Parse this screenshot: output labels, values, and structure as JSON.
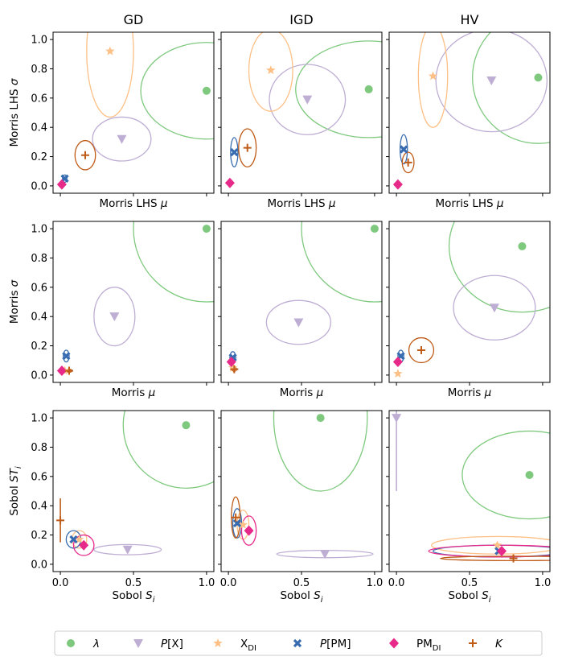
{
  "figure": {
    "column_titles": [
      "GD",
      "IGD",
      "HV"
    ],
    "row_xlabels": [
      {
        "prefix": "Morris LHS",
        "sym": "μ",
        "sub": ""
      },
      {
        "prefix": "Morris",
        "sym": "μ",
        "sub": ""
      },
      {
        "prefix": "Sobol",
        "sym": "S",
        "sub": "i"
      }
    ],
    "row_ylabels": [
      {
        "prefix": "Morris LHS",
        "sym": "σ",
        "sub": ""
      },
      {
        "prefix": "Morris",
        "sym": "σ",
        "sub": ""
      },
      {
        "prefix": "Sobol",
        "sym": "ST",
        "sub": "i"
      }
    ]
  },
  "colors": {
    "lambda": "#7fc97f",
    "PX": "#beaed4",
    "XDI": "#fdc086",
    "PPM": "#386cb0",
    "PMDI": "#e7298a",
    "K": "#bf5b17"
  },
  "legend": [
    {
      "key": "lambda",
      "marker": "circle",
      "main": "λ",
      "italic": true
    },
    {
      "key": "PX",
      "marker": "triangle",
      "main": "P[X]",
      "italicPrefix": "P",
      "rest": "[X]"
    },
    {
      "key": "XDI",
      "marker": "star",
      "main": "X",
      "sub": "DI"
    },
    {
      "key": "PPM",
      "marker": "x",
      "main": "P[PM]",
      "italicPrefix": "P",
      "rest": "[PM]"
    },
    {
      "key": "PMDI",
      "marker": "diamond",
      "main": "PM",
      "sub": "DI"
    },
    {
      "key": "K",
      "marker": "plus",
      "main": "K",
      "italic": true
    }
  ],
  "chart_data": [
    {
      "type": "scatter",
      "row": 0,
      "col": 0,
      "title": "GD",
      "xlabel": "Morris LHS μ",
      "ylabel": "Morris LHS σ",
      "xlim": [
        -0.05,
        1.05
      ],
      "ylim": [
        -0.05,
        1.05
      ],
      "yticks": [
        0.0,
        0.2,
        0.4,
        0.6,
        0.8,
        1.0
      ],
      "points": [
        {
          "s": "lambda",
          "x": 1.0,
          "y": 0.65,
          "ex": 0.45,
          "ey": 0.33
        },
        {
          "s": "PX",
          "x": 0.42,
          "y": 0.32,
          "ex": 0.2,
          "ey": 0.15
        },
        {
          "s": "XDI",
          "x": 0.34,
          "y": 0.92,
          "ex": 0.16,
          "ey": 0.45
        },
        {
          "s": "PPM",
          "x": 0.03,
          "y": 0.05,
          "ex": 0.015,
          "ey": 0.025
        },
        {
          "s": "PMDI",
          "x": 0.01,
          "y": 0.01,
          "ex": 0,
          "ey": 0
        },
        {
          "s": "K",
          "x": 0.17,
          "y": 0.21,
          "ex": 0.07,
          "ey": 0.1
        }
      ]
    },
    {
      "type": "scatter",
      "row": 0,
      "col": 1,
      "title": "IGD",
      "xlabel": "Morris LHS μ",
      "ylabel": "",
      "xlim": [
        -0.05,
        1.05
      ],
      "ylim": [
        -0.05,
        1.05
      ],
      "points": [
        {
          "s": "lambda",
          "x": 0.96,
          "y": 0.66,
          "ex": 0.5,
          "ey": 0.33
        },
        {
          "s": "PX",
          "x": 0.54,
          "y": 0.59,
          "ex": 0.26,
          "ey": 0.24
        },
        {
          "s": "XDI",
          "x": 0.29,
          "y": 0.79,
          "ex": 0.15,
          "ey": 0.28
        },
        {
          "s": "PPM",
          "x": 0.04,
          "y": 0.23,
          "ex": 0.025,
          "ey": 0.1
        },
        {
          "s": "PMDI",
          "x": 0.01,
          "y": 0.02,
          "ex": 0,
          "ey": 0
        },
        {
          "s": "K",
          "x": 0.13,
          "y": 0.26,
          "ex": 0.06,
          "ey": 0.13
        }
      ]
    },
    {
      "type": "scatter",
      "row": 0,
      "col": 2,
      "title": "HV",
      "xlabel": "Morris LHS μ",
      "ylabel": "",
      "xlim": [
        -0.05,
        1.05
      ],
      "ylim": [
        -0.05,
        1.05
      ],
      "points": [
        {
          "s": "lambda",
          "x": 0.97,
          "y": 0.74,
          "ex": 0.45,
          "ey": 0.45
        },
        {
          "s": "PX",
          "x": 0.65,
          "y": 0.72,
          "ex": 0.38,
          "ey": 0.35
        },
        {
          "s": "XDI",
          "x": 0.25,
          "y": 0.75,
          "ex": 0.1,
          "ey": 0.35
        },
        {
          "s": "PPM",
          "x": 0.05,
          "y": 0.25,
          "ex": 0.025,
          "ey": 0.1
        },
        {
          "s": "PMDI",
          "x": 0.01,
          "y": 0.01,
          "ex": 0,
          "ey": 0
        },
        {
          "s": "K",
          "x": 0.08,
          "y": 0.16,
          "ex": 0.04,
          "ey": 0.07
        }
      ]
    },
    {
      "type": "scatter",
      "row": 1,
      "col": 0,
      "title": "",
      "xlabel": "Morris μ",
      "ylabel": "Morris σ",
      "xlim": [
        -0.05,
        1.05
      ],
      "ylim": [
        -0.05,
        1.05
      ],
      "yticks": [
        0.0,
        0.2,
        0.4,
        0.6,
        0.8,
        1.0
      ],
      "points": [
        {
          "s": "lambda",
          "x": 1.0,
          "y": 1.0,
          "ex": 0.5,
          "ey": 0.5
        },
        {
          "s": "PX",
          "x": 0.37,
          "y": 0.4,
          "ex": 0.14,
          "ey": 0.2
        },
        {
          "s": "XDI",
          "x": 0.03,
          "y": 0.03,
          "ex": 0.01,
          "ey": 0.015
        },
        {
          "s": "PPM",
          "x": 0.04,
          "y": 0.13,
          "ex": 0.02,
          "ey": 0.04
        },
        {
          "s": "PMDI",
          "x": 0.01,
          "y": 0.03,
          "ex": 0,
          "ey": 0
        },
        {
          "s": "K",
          "x": 0.06,
          "y": 0.03,
          "ex": 0.02,
          "ey": 0.01
        }
      ]
    },
    {
      "type": "scatter",
      "row": 1,
      "col": 1,
      "title": "",
      "xlabel": "Morris μ",
      "ylabel": "",
      "xlim": [
        -0.05,
        1.05
      ],
      "ylim": [
        -0.05,
        1.05
      ],
      "points": [
        {
          "s": "lambda",
          "x": 1.0,
          "y": 1.0,
          "ex": 0.5,
          "ey": 0.5
        },
        {
          "s": "PX",
          "x": 0.48,
          "y": 0.36,
          "ex": 0.22,
          "ey": 0.15
        },
        {
          "s": "XDI",
          "x": 0.03,
          "y": 0.05,
          "ex": 0.01,
          "ey": 0.02
        },
        {
          "s": "PPM",
          "x": 0.03,
          "y": 0.12,
          "ex": 0.02,
          "ey": 0.04
        },
        {
          "s": "PMDI",
          "x": 0.02,
          "y": 0.09,
          "ex": 0,
          "ey": 0
        },
        {
          "s": "K",
          "x": 0.04,
          "y": 0.04,
          "ex": 0.015,
          "ey": 0.015
        }
      ]
    },
    {
      "type": "scatter",
      "row": 1,
      "col": 2,
      "title": "",
      "xlabel": "Morris μ",
      "ylabel": "",
      "xlim": [
        -0.05,
        1.05
      ],
      "ylim": [
        -0.05,
        1.05
      ],
      "points": [
        {
          "s": "lambda",
          "x": 0.86,
          "y": 0.88,
          "ex": 0.5,
          "ey": 0.45
        },
        {
          "s": "PX",
          "x": 0.67,
          "y": 0.46,
          "ex": 0.28,
          "ey": 0.22
        },
        {
          "s": "XDI",
          "x": 0.01,
          "y": 0.01,
          "ex": 0,
          "ey": 0
        },
        {
          "s": "PPM",
          "x": 0.03,
          "y": 0.13,
          "ex": 0.02,
          "ey": 0.04
        },
        {
          "s": "PMDI",
          "x": 0.01,
          "y": 0.09,
          "ex": 0,
          "ey": 0
        },
        {
          "s": "K",
          "x": 0.17,
          "y": 0.17,
          "ex": 0.085,
          "ey": 0.085
        }
      ]
    },
    {
      "type": "scatter",
      "row": 2,
      "col": 0,
      "title": "",
      "xlabel": "Sobol Si",
      "ylabel": "Sobol STi",
      "xlim": [
        -0.05,
        1.05
      ],
      "ylim": [
        -0.05,
        1.05
      ],
      "yticks": [
        0.0,
        0.2,
        0.4,
        0.6,
        0.8,
        1.0
      ],
      "xticks": [
        0.0,
        0.5,
        1.0
      ],
      "points": [
        {
          "s": "lambda",
          "x": 0.86,
          "y": 0.95,
          "ex": 0.43,
          "ey": 0.43
        },
        {
          "s": "PX",
          "x": 0.46,
          "y": 0.1,
          "ex": 0.23,
          "ey": 0.035
        },
        {
          "s": "XDI",
          "x": 0.13,
          "y": 0.17,
          "ex": 0.05,
          "ey": 0.06
        },
        {
          "s": "PPM",
          "x": 0.09,
          "y": 0.17,
          "ex": 0.05,
          "ey": 0.06
        },
        {
          "s": "PMDI",
          "x": 0.16,
          "y": 0.13,
          "ex": 0.07,
          "ey": 0.07
        },
        {
          "s": "K",
          "x": 0.0,
          "y": 0.3,
          "ex": 0,
          "ey": 0.15
        }
      ]
    },
    {
      "type": "scatter",
      "row": 2,
      "col": 1,
      "title": "",
      "xlabel": "Sobol Si",
      "ylabel": "",
      "xlim": [
        -0.05,
        1.05
      ],
      "ylim": [
        -0.05,
        1.05
      ],
      "xticks": [
        0.0,
        0.5,
        1.0
      ],
      "points": [
        {
          "s": "lambda",
          "x": 0.63,
          "y": 1.0,
          "ex": 0.32,
          "ey": 0.5
        },
        {
          "s": "PX",
          "x": 0.66,
          "y": 0.07,
          "ex": 0.33,
          "ey": 0.025
        },
        {
          "s": "XDI",
          "x": 0.1,
          "y": 0.27,
          "ex": 0.04,
          "ey": 0.1
        },
        {
          "s": "PPM",
          "x": 0.06,
          "y": 0.28,
          "ex": 0.03,
          "ey": 0.1
        },
        {
          "s": "PMDI",
          "x": 0.14,
          "y": 0.23,
          "ex": 0.05,
          "ey": 0.1
        },
        {
          "s": "K",
          "x": 0.05,
          "y": 0.32,
          "ex": 0.03,
          "ey": 0.14
        }
      ]
    },
    {
      "type": "scatter",
      "row": 2,
      "col": 2,
      "title": "",
      "xlabel": "Sobol Si",
      "ylabel": "",
      "xlim": [
        -0.05,
        1.05
      ],
      "ylim": [
        -0.05,
        1.05
      ],
      "xticks": [
        0.0,
        0.5,
        1.0
      ],
      "points": [
        {
          "s": "lambda",
          "x": 0.91,
          "y": 0.61,
          "ex": 0.46,
          "ey": 0.3
        },
        {
          "s": "PX",
          "x": 0.0,
          "y": 1.0,
          "ex": 0,
          "ey": 0.5
        },
        {
          "s": "XDI",
          "x": 0.69,
          "y": 0.13,
          "ex": 0.45,
          "ey": 0.06
        },
        {
          "s": "PPM",
          "x": 0.7,
          "y": 0.09,
          "ex": 0.45,
          "ey": 0.04
        },
        {
          "s": "PMDI",
          "x": 0.72,
          "y": 0.09,
          "ex": 0.5,
          "ey": 0.04
        },
        {
          "s": "K",
          "x": 0.8,
          "y": 0.04,
          "ex": 0.5,
          "ey": 0.015
        }
      ]
    }
  ]
}
